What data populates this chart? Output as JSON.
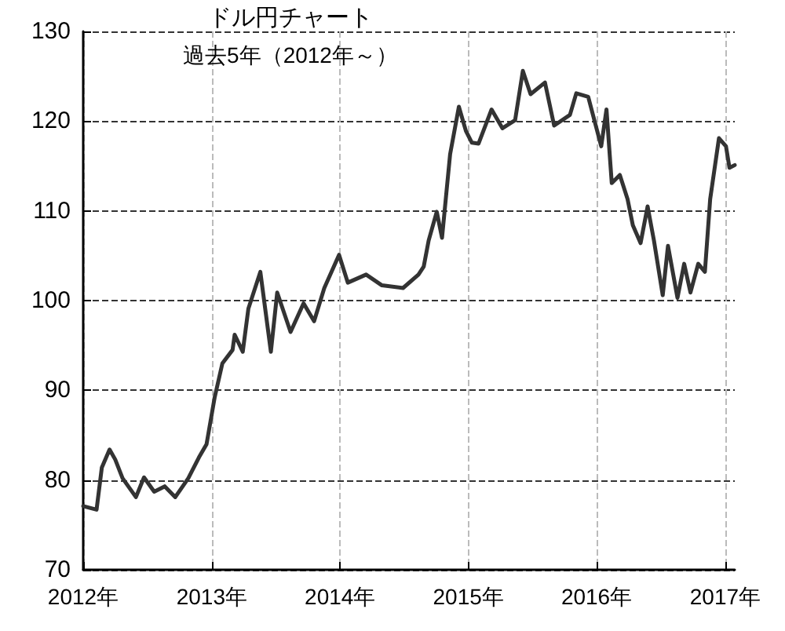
{
  "chart_data": {
    "type": "line",
    "title": "ドル円チャート",
    "subtitle": "過去5年（2012年～）",
    "x": [
      "2012-01-01",
      "2012-02-08",
      "2012-02-23",
      "2012-03-16",
      "2012-04-01",
      "2012-04-22",
      "2012-05-30",
      "2012-06-22",
      "2012-07-21",
      "2012-08-20",
      "2012-09-19",
      "2012-10-26",
      "2012-11-25",
      "2012-12-17",
      "2013-01-09",
      "2013-01-31",
      "2013-03-01",
      "2013-03-07",
      "2013-03-30",
      "2013-04-15",
      "2013-05-19",
      "2013-06-18",
      "2013-07-06",
      "2013-08-13",
      "2013-09-19",
      "2013-10-19",
      "2013-11-17",
      "2013-12-29",
      "2014-01-23",
      "2014-03-16",
      "2014-04-30",
      "2014-06-29",
      "2014-08-12",
      "2014-08-27",
      "2014-09-10",
      "2014-10-03",
      "2014-10-18",
      "2014-11-10",
      "2014-12-05",
      "2014-12-25",
      "2015-01-11",
      "2015-01-30",
      "2015-03-08",
      "2015-04-08",
      "2015-05-14",
      "2015-06-05",
      "2015-06-27",
      "2015-08-07",
      "2015-09-02",
      "2015-10-17",
      "2015-11-04",
      "2015-12-08",
      "2016-01-14",
      "2016-01-29",
      "2016-02-13",
      "2016-03-07",
      "2016-03-29",
      "2016-04-13",
      "2016-05-05",
      "2016-05-25",
      "2016-06-12",
      "2016-07-07",
      "2016-07-22",
      "2016-08-18",
      "2016-09-06",
      "2016-09-24",
      "2016-10-16",
      "2016-11-04",
      "2016-11-19",
      "2016-12-14",
      "2017-01-03",
      "2017-01-13",
      "2017-01-28"
    ],
    "series": [
      {
        "color": "#333333",
        "values": [
          77.1,
          76.7,
          81.4,
          83.4,
          82.3,
          80.2,
          78.1,
          80.3,
          78.7,
          79.3,
          78.1,
          80.2,
          82.5,
          84,
          89.2,
          93,
          94.5,
          96.2,
          94.3,
          99.1,
          103.2,
          94.3,
          100.9,
          96.5,
          99.7,
          97.7,
          101.4,
          105.1,
          102,
          102.9,
          101.7,
          101.4,
          102.9,
          103.8,
          106.7,
          109.9,
          107,
          116.3,
          121.6,
          118.9,
          117.6,
          117.5,
          121.3,
          119.2,
          120.1,
          125.6,
          123,
          124.3,
          119.5,
          120.7,
          123.1,
          122.7,
          117.2,
          121.3,
          113.1,
          114,
          111.3,
          108.4,
          106.4,
          110.5,
          106.7,
          100.6,
          106.1,
          100.3,
          104.1,
          100.9,
          104.1,
          103.2,
          111.3,
          118.1,
          117.2,
          114.8,
          115.1
        ]
      }
    ],
    "xlim": [
      "2012-01-01",
      "2017-01-28"
    ],
    "xticks": [
      {
        "value": "2012-01-01",
        "label": "2012年"
      },
      {
        "value": "2013-01-01",
        "label": "2013年"
      },
      {
        "value": "2014-01-01",
        "label": "2014年"
      },
      {
        "value": "2015-01-01",
        "label": "2015年"
      },
      {
        "value": "2016-01-01",
        "label": "2016年"
      },
      {
        "value": "2017-01-01",
        "label": "2017年"
      }
    ],
    "ylim": [
      70,
      130
    ],
    "yticks": [
      70,
      80,
      90,
      100,
      110,
      120,
      130
    ],
    "grid": true,
    "marker": "none",
    "line_style": "solid"
  }
}
